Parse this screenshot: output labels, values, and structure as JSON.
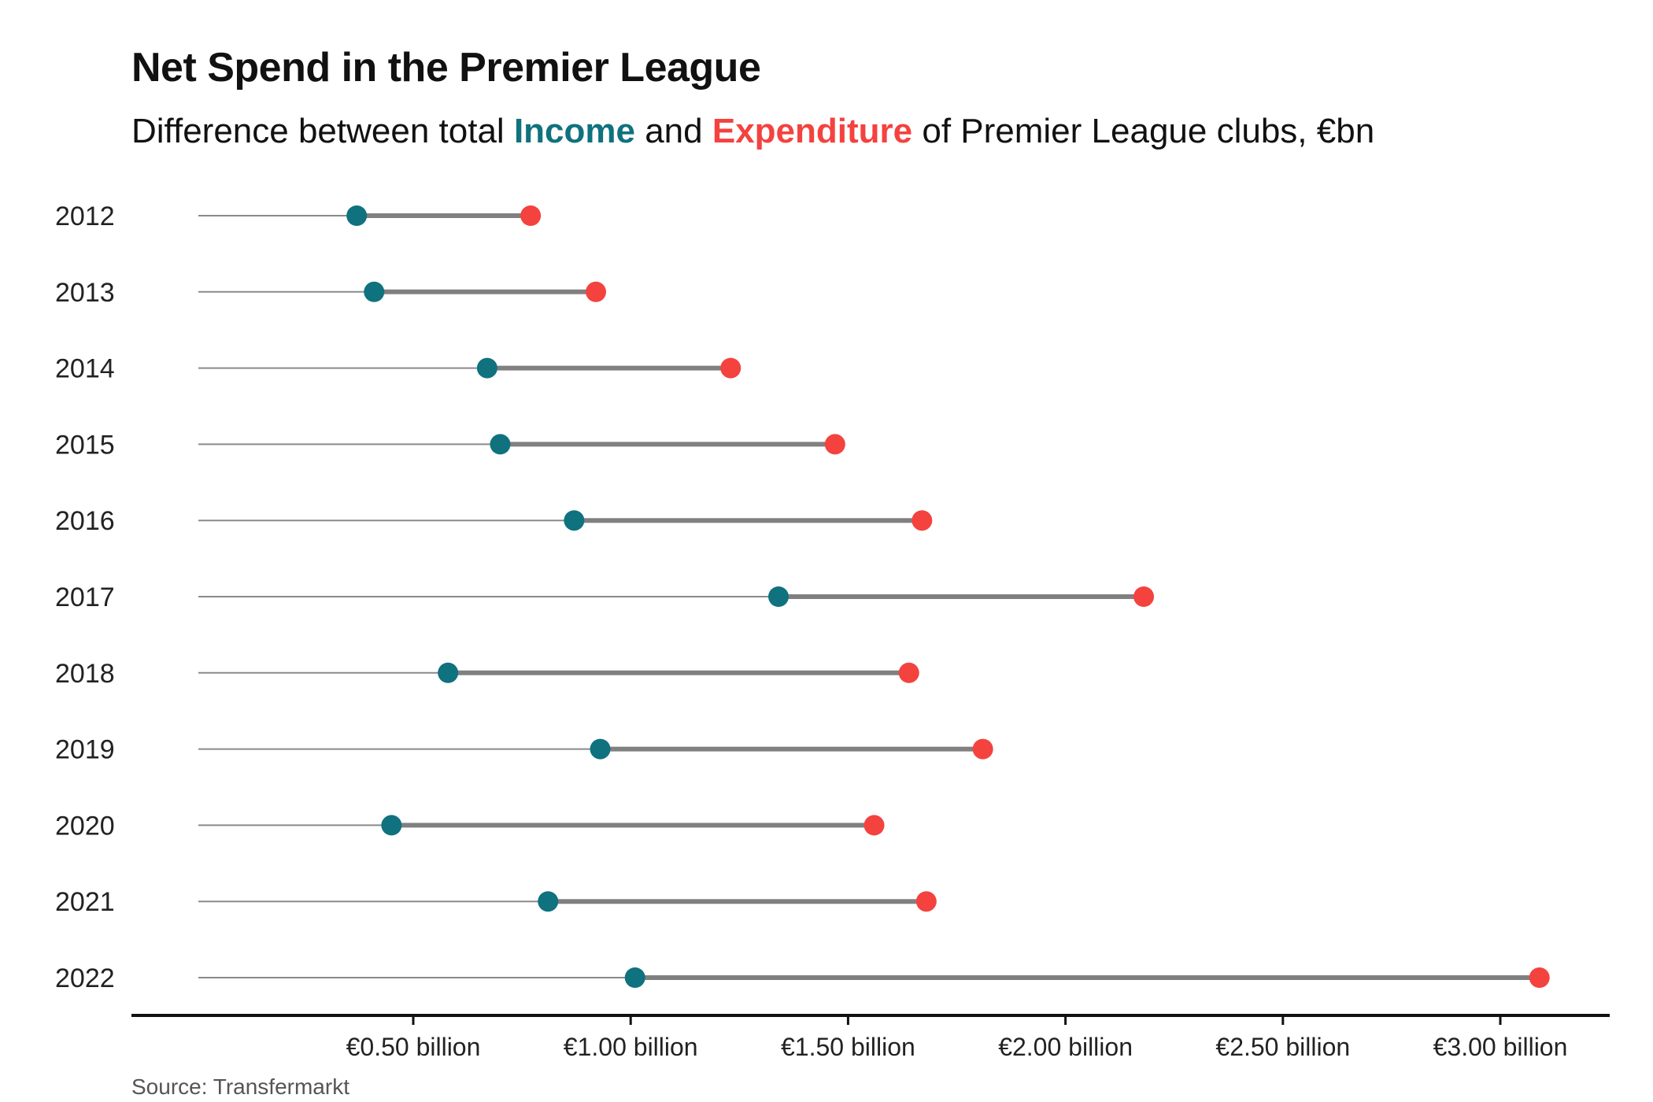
{
  "title": "Net Spend in the Premier League",
  "subtitle": {
    "prefix": "Difference between total ",
    "income_word": "Income",
    "middle": " and ",
    "expenditure_word": "Expenditure",
    "suffix": " of Premier League clubs, €bn"
  },
  "source": "Source: Transfermarkt",
  "colors": {
    "income": "#0f727e",
    "expenditure": "#f4423f",
    "connector": "#808080",
    "baseline_stem": "#8a8a8a",
    "axis": "#111111"
  },
  "chart_data": {
    "type": "dumbbell",
    "title": "Net Spend in the Premier League",
    "subtitle": "Difference between total Income and Expenditure of Premier League clubs, €bn",
    "xlim": [
      0,
      3.15
    ],
    "xticks": [
      0.5,
      1.0,
      1.5,
      2.0,
      2.5,
      3.0
    ],
    "xtick_labels": [
      "€0.50 billion",
      "€1.00 billion",
      "€1.50 billion",
      "€2.00 billion",
      "€2.50 billion",
      "€3.00 billion"
    ],
    "categories": [
      "2012",
      "2013",
      "2014",
      "2015",
      "2016",
      "2017",
      "2018",
      "2019",
      "2020",
      "2021",
      "2022"
    ],
    "series": [
      {
        "name": "Income",
        "values": [
          0.37,
          0.41,
          0.67,
          0.7,
          0.87,
          1.34,
          0.58,
          0.93,
          0.45,
          0.81,
          1.01
        ]
      },
      {
        "name": "Expenditure",
        "values": [
          0.77,
          0.92,
          1.23,
          1.47,
          1.67,
          2.18,
          1.64,
          1.81,
          1.56,
          1.68,
          3.09
        ]
      }
    ]
  }
}
